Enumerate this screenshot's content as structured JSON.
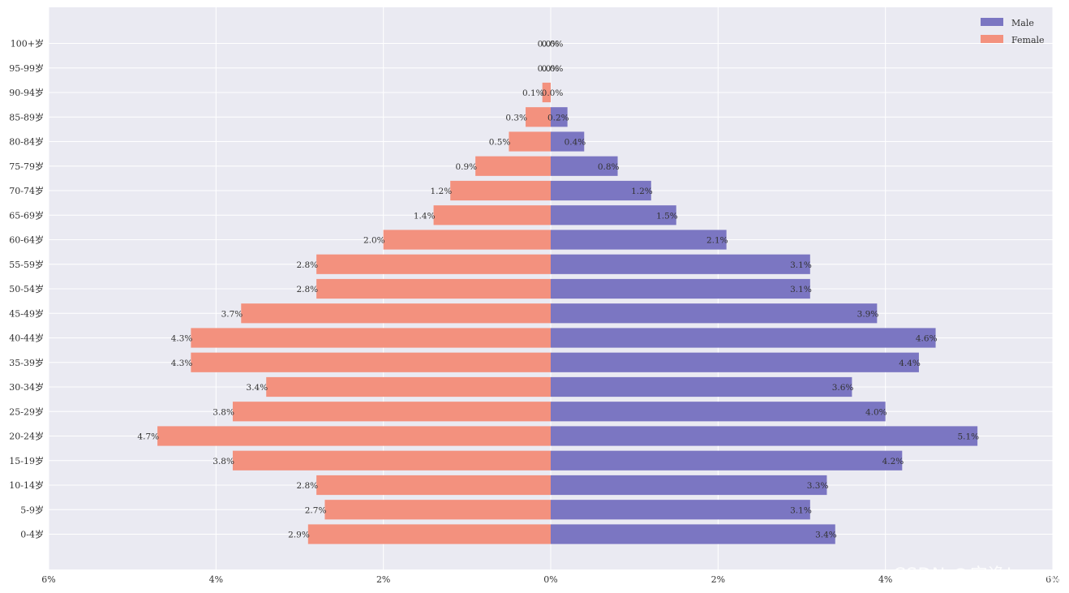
{
  "chart_data": {
    "type": "bar",
    "orientation": "horizontal",
    "title": "",
    "xlabel": "",
    "ylabel": "",
    "xlim": [
      -6,
      6
    ],
    "x_ticks": [
      -6,
      -4,
      -2,
      0,
      2,
      4,
      6
    ],
    "x_tick_labels": [
      "6%",
      "4%",
      "2%",
      "0%",
      "2%",
      "4%",
      "6%"
    ],
    "grid": true,
    "legend_position": "top-right",
    "categories": [
      "0-4岁",
      "5-9岁",
      "10-14岁",
      "15-19岁",
      "20-24岁",
      "25-29岁",
      "30-34岁",
      "35-39岁",
      "40-44岁",
      "45-49岁",
      "50-54岁",
      "55-59岁",
      "60-64岁",
      "65-69岁",
      "70-74岁",
      "75-79岁",
      "80-84岁",
      "85-89岁",
      "90-94岁",
      "95-99岁",
      "100+岁"
    ],
    "series": [
      {
        "name": "Male",
        "color": "#7b76c2",
        "values": [
          3.4,
          3.1,
          3.3,
          4.2,
          5.1,
          4.0,
          3.6,
          4.4,
          4.6,
          3.9,
          3.1,
          3.1,
          2.1,
          1.5,
          1.2,
          0.8,
          0.4,
          0.2,
          0.0,
          0.0,
          0.0
        ],
        "labels": [
          "3.4%",
          "3.1%",
          "3.3%",
          "4.2%",
          "5.1%",
          "4.0%",
          "3.6%",
          "4.4%",
          "4.6%",
          "3.9%",
          "3.1%",
          "3.1%",
          "2.1%",
          "1.5%",
          "1.2%",
          "0.8%",
          "0.4%",
          "0.2%",
          "0.0%",
          "0.0%",
          "0.0%"
        ]
      },
      {
        "name": "Female",
        "color": "#f3917e",
        "values": [
          -2.9,
          -2.7,
          -2.8,
          -3.8,
          -4.7,
          -3.8,
          -3.4,
          -4.3,
          -4.3,
          -3.7,
          -2.8,
          -2.8,
          -2.0,
          -1.4,
          -1.2,
          -0.9,
          -0.5,
          -0.3,
          -0.1,
          0.0,
          0.0
        ],
        "labels": [
          "2.9%",
          "2.7%",
          "2.8%",
          "3.8%",
          "4.7%",
          "3.8%",
          "3.4%",
          "4.3%",
          "4.3%",
          "3.7%",
          "2.8%",
          "2.8%",
          "2.0%",
          "1.4%",
          "1.2%",
          "0.9%",
          "0.5%",
          "0.3%",
          "0.1%",
          "0.0%",
          "0.0%"
        ]
      }
    ],
    "background_color": "#eaeaf2",
    "grid_color": "#ffffff"
  },
  "watermark": "CSDN @安逸Loong"
}
